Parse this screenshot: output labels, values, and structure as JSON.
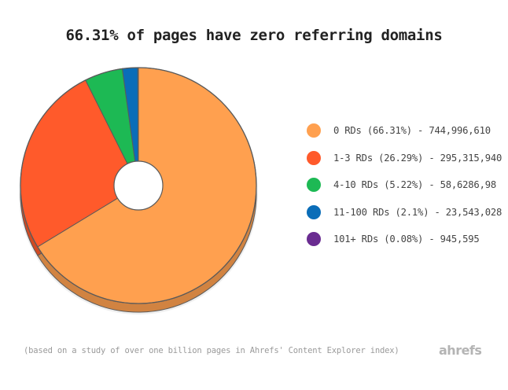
{
  "title": "66.31% of pages have zero referring domains",
  "footnote": "(based on a study of over one billion pages in Ahrefs' Content Explorer index)",
  "logo": "ahrefs",
  "chart_data": {
    "type": "pie",
    "donut": true,
    "three_d": true,
    "legend_position": "right",
    "slices": [
      {
        "label": "0 RDs (66.31%) - 744,996,610",
        "percent": 66.31,
        "value": 744996610,
        "color": "#FFA04F"
      },
      {
        "label": "1-3 RDs (26.29%) - 295,315,940",
        "percent": 26.29,
        "value": 295315940,
        "color": "#FF5A2B"
      },
      {
        "label": "4-10 RDs (5.22%) - 58,6286,98",
        "percent": 5.22,
        "value": 58628698,
        "color": "#1DB954"
      },
      {
        "label": "11-100 RDs (2.1%) - 23,543,028",
        "percent": 2.1,
        "value": 23543028,
        "color": "#0A6DB8"
      },
      {
        "label": "101+ RDs (0.08%) - 945,595",
        "percent": 0.08,
        "value": 945595,
        "color": "#6A2C91"
      }
    ]
  }
}
